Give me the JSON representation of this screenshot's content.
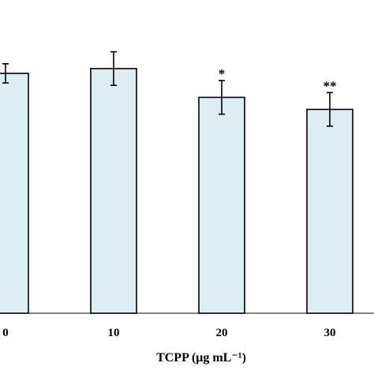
{
  "chart_data": {
    "type": "bar",
    "categories": [
      "0",
      "10",
      "20",
      "30"
    ],
    "values": [
      100,
      102,
      90,
      85
    ],
    "errors": [
      4,
      7,
      7,
      7
    ],
    "significance": [
      "",
      "",
      "*",
      "**"
    ],
    "xlabel": "TCPP (μg mL⁻¹)",
    "ylabel": "",
    "ylim": [
      0,
      130
    ],
    "grid": false,
    "bar_color": "#dcedf3",
    "bar_edge_color": "#000000"
  }
}
